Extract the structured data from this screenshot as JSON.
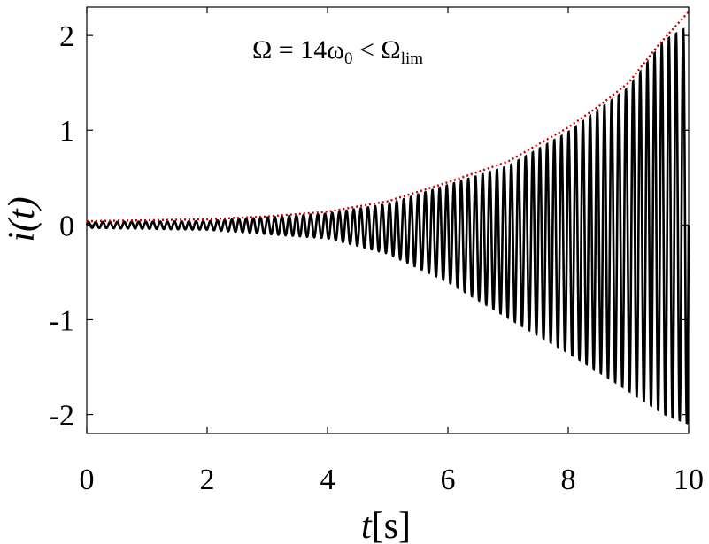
{
  "chart_data": {
    "type": "line",
    "title": "",
    "xlabel": {
      "italic": "t",
      "rest": "[s]"
    },
    "ylabel": "i(t)",
    "annotation": {
      "main": "Ω = 14ω",
      "sub": "0",
      "rel": " < Ω",
      "sub2": "lim"
    },
    "xlim": [
      0,
      10
    ],
    "ylim": [
      -2.2,
      2.3
    ],
    "xticks": [
      0,
      2,
      4,
      6,
      8,
      10
    ],
    "xtick_labels": [
      "0",
      "2",
      "4",
      "6",
      "8",
      "10"
    ],
    "yticks": [
      -2,
      -1,
      0,
      1,
      2
    ],
    "ytick_labels": [
      "-2",
      "-1",
      "0",
      "1",
      "2"
    ],
    "grid": false,
    "series": [
      {
        "style": "oscillation",
        "color": "#000000",
        "description_values": {
          "frequency_hz": 8.4,
          "envelope_upper": [
            [
              0,
              0.03
            ],
            [
              2,
              0.04
            ],
            [
              4,
              0.12
            ],
            [
              5,
              0.22
            ],
            [
              6,
              0.42
            ],
            [
              7,
              0.62
            ],
            [
              8,
              0.98
            ],
            [
              9,
              1.45
            ],
            [
              9.6,
              1.95
            ],
            [
              10,
              2.1
            ]
          ],
          "envelope_lower": [
            [
              0,
              -0.03
            ],
            [
              2,
              -0.05
            ],
            [
              4,
              -0.14
            ],
            [
              5,
              -0.3
            ],
            [
              6,
              -0.6
            ],
            [
              7,
              -0.98
            ],
            [
              8,
              -1.35
            ],
            [
              9,
              -1.75
            ],
            [
              9.6,
              -2.0
            ],
            [
              10,
              -2.1
            ]
          ]
        }
      },
      {
        "style": "envelope-dotted",
        "color": "#cc0000",
        "points": [
          [
            0,
            0.04
          ],
          [
            1,
            0.05
          ],
          [
            2,
            0.06
          ],
          [
            3,
            0.09
          ],
          [
            4,
            0.14
          ],
          [
            5,
            0.25
          ],
          [
            6,
            0.45
          ],
          [
            7,
            0.67
          ],
          [
            8,
            1.03
          ],
          [
            8.5,
            1.25
          ],
          [
            9,
            1.5
          ],
          [
            9.5,
            1.9
          ],
          [
            10,
            2.25
          ]
        ]
      }
    ]
  }
}
